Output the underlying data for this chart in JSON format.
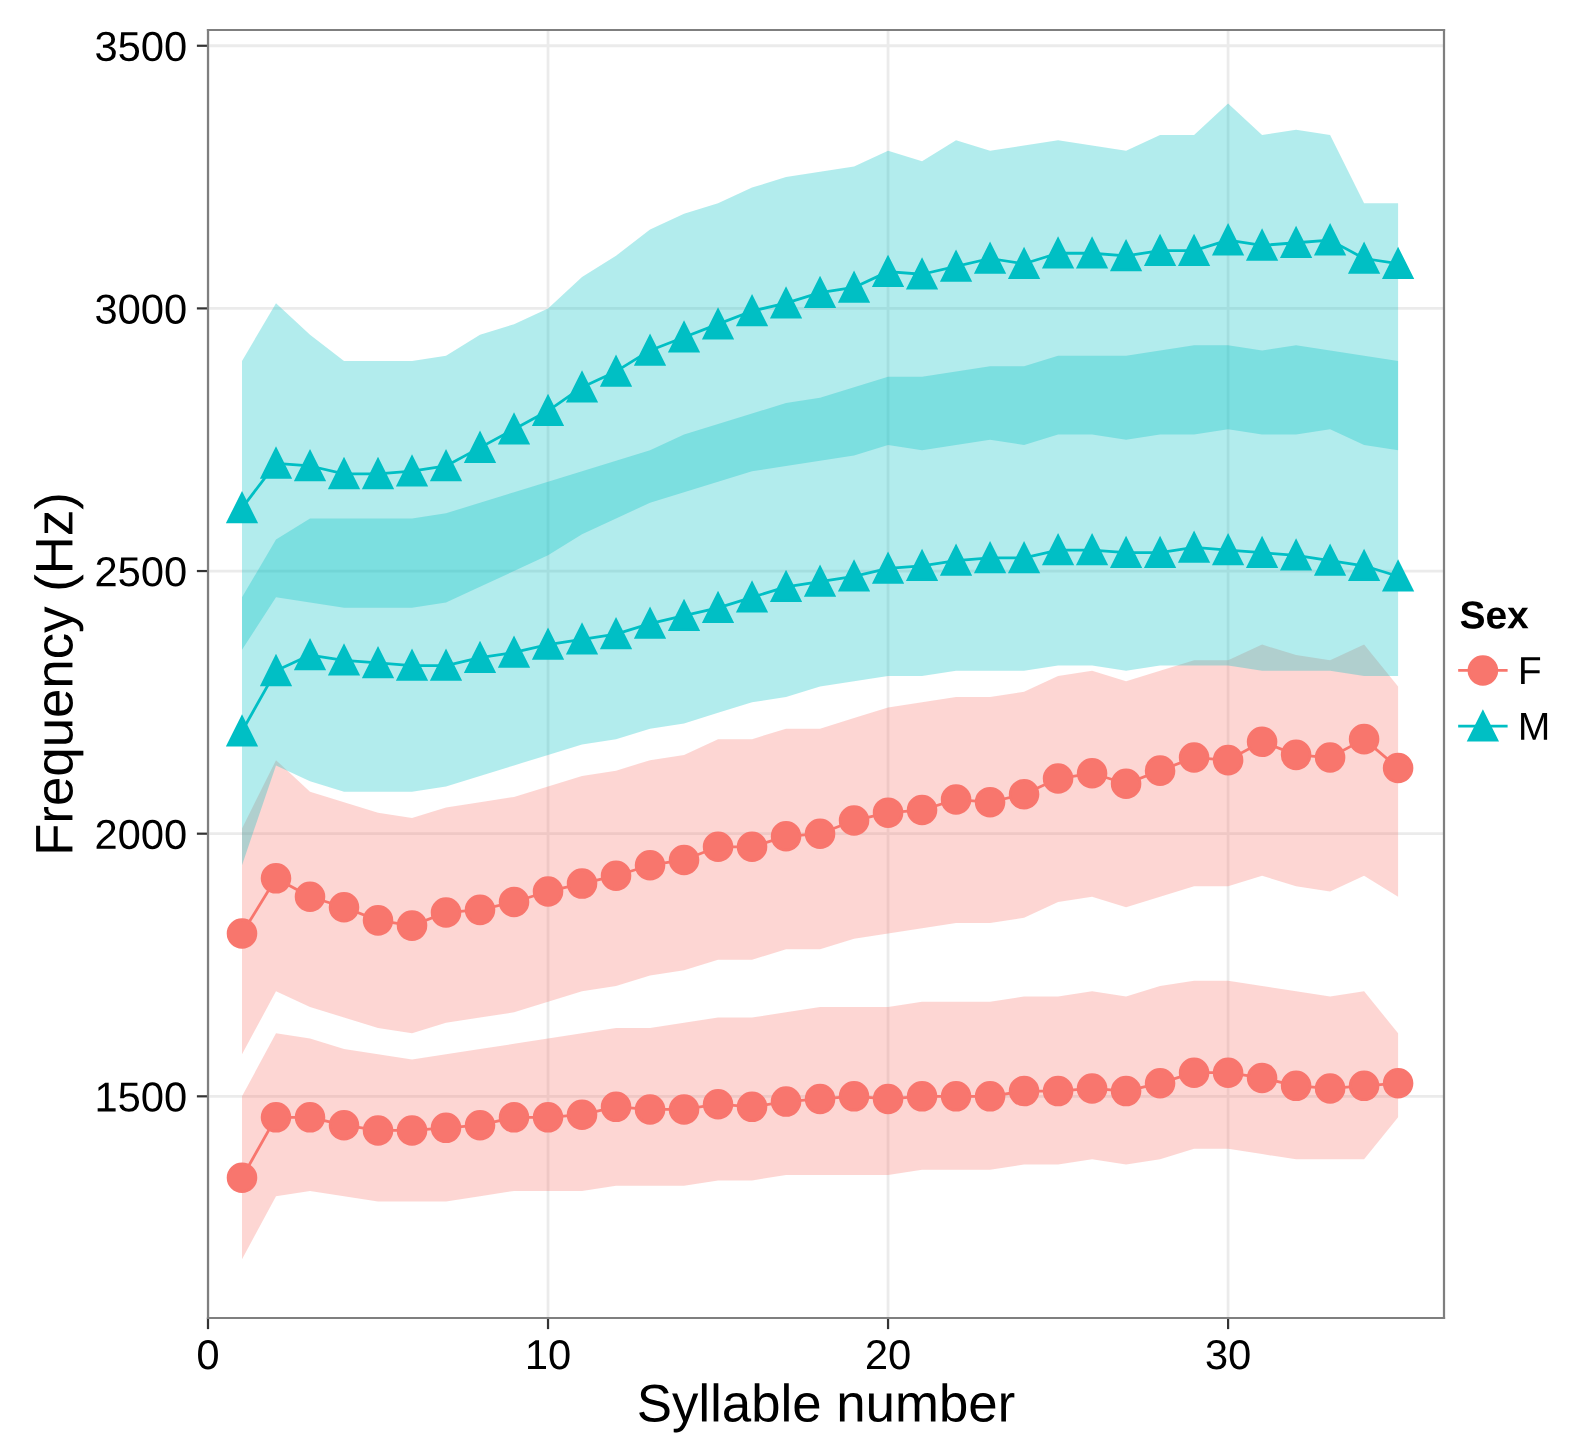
{
  "chart_data": {
    "type": "line",
    "xlabel": "Syllable number",
    "ylabel": "Frequency (Hz)",
    "legend_title": "Sex",
    "legend": "right",
    "grid": true,
    "xlim": [
      0,
      36.35
    ],
    "xticks": [
      0,
      10,
      20,
      30
    ],
    "ylim": [
      1078,
      3530
    ],
    "yticks": [
      1500,
      2000,
      2500,
      3000,
      3500
    ],
    "x": [
      1,
      2,
      3,
      4,
      5,
      6,
      7,
      8,
      9,
      10,
      11,
      12,
      13,
      14,
      15,
      16,
      17,
      18,
      19,
      20,
      21,
      22,
      23,
      24,
      25,
      26,
      27,
      28,
      29,
      30,
      31,
      32,
      33,
      34,
      35
    ],
    "series": [
      {
        "name": "F",
        "color": "#f8766d",
        "marker": "circle",
        "values": [
          1810,
          1915,
          1880,
          1860,
          1835,
          1825,
          1850,
          1855,
          1870,
          1890,
          1905,
          1920,
          1940,
          1950,
          1975,
          1975,
          1995,
          2000,
          2025,
          2040,
          2045,
          2065,
          2060,
          2075,
          2105,
          2115,
          2095,
          2120,
          2145,
          2140,
          2175,
          2150,
          2145,
          2180,
          2125
        ],
        "lower": [
          1580,
          1700,
          1670,
          1650,
          1630,
          1620,
          1640,
          1650,
          1660,
          1680,
          1700,
          1710,
          1730,
          1740,
          1760,
          1760,
          1780,
          1780,
          1800,
          1810,
          1820,
          1830,
          1830,
          1840,
          1870,
          1880,
          1860,
          1880,
          1900,
          1900,
          1920,
          1900,
          1890,
          1920,
          1880
        ],
        "upper": [
          2010,
          2140,
          2080,
          2060,
          2040,
          2030,
          2050,
          2060,
          2070,
          2090,
          2110,
          2120,
          2140,
          2150,
          2180,
          2180,
          2200,
          2200,
          2220,
          2240,
          2250,
          2260,
          2260,
          2270,
          2300,
          2310,
          2290,
          2310,
          2330,
          2330,
          2360,
          2340,
          2330,
          2360,
          2280
        ]
      },
      {
        "color": "#f8766e",
        "marker": "circle",
        "values": [
          1345,
          1460,
          1460,
          1445,
          1435,
          1435,
          1440,
          1445,
          1460,
          1460,
          1465,
          1480,
          1475,
          1475,
          1485,
          1480,
          1490,
          1495,
          1500,
          1495,
          1500,
          1500,
          1500,
          1510,
          1510,
          1515,
          1510,
          1525,
          1545,
          1545,
          1535,
          1520,
          1515,
          1520,
          1525
        ],
        "lower": [
          1190,
          1310,
          1320,
          1310,
          1300,
          1300,
          1300,
          1310,
          1320,
          1320,
          1320,
          1330,
          1330,
          1330,
          1340,
          1340,
          1350,
          1350,
          1350,
          1350,
          1360,
          1360,
          1360,
          1370,
          1370,
          1380,
          1370,
          1380,
          1400,
          1400,
          1390,
          1380,
          1380,
          1380,
          1460
        ],
        "upper": [
          1500,
          1620,
          1610,
          1590,
          1580,
          1570,
          1580,
          1590,
          1600,
          1610,
          1620,
          1630,
          1630,
          1640,
          1650,
          1650,
          1660,
          1670,
          1670,
          1670,
          1680,
          1680,
          1680,
          1690,
          1690,
          1700,
          1690,
          1710,
          1720,
          1720,
          1710,
          1700,
          1690,
          1700,
          1620
        ]
      },
      {
        "name": "M",
        "color": "#00bfc4",
        "marker": "triangle",
        "values": [
          2620,
          2705,
          2700,
          2685,
          2685,
          2690,
          2700,
          2735,
          2770,
          2805,
          2850,
          2880,
          2920,
          2945,
          2970,
          2995,
          3010,
          3030,
          3040,
          3070,
          3065,
          3080,
          3095,
          3085,
          3105,
          3105,
          3100,
          3110,
          3110,
          3130,
          3120,
          3125,
          3130,
          3095,
          3085
        ],
        "lower": [
          2350,
          2450,
          2440,
          2430,
          2430,
          2430,
          2440,
          2470,
          2500,
          2530,
          2570,
          2600,
          2630,
          2650,
          2670,
          2690,
          2700,
          2710,
          2720,
          2740,
          2730,
          2740,
          2750,
          2740,
          2760,
          2760,
          2750,
          2760,
          2760,
          2770,
          2760,
          2760,
          2770,
          2740,
          2730
        ],
        "upper": [
          2900,
          3010,
          2950,
          2900,
          2900,
          2900,
          2910,
          2950,
          2970,
          3000,
          3060,
          3100,
          3150,
          3180,
          3200,
          3230,
          3250,
          3260,
          3270,
          3300,
          3280,
          3320,
          3300,
          3310,
          3320,
          3310,
          3300,
          3330,
          3330,
          3390,
          3330,
          3340,
          3330,
          3200,
          3200
        ]
      },
      {
        "color": "#00bfc5",
        "marker": "triangle",
        "values": [
          2195,
          2310,
          2340,
          2330,
          2325,
          2320,
          2320,
          2335,
          2345,
          2360,
          2370,
          2380,
          2400,
          2415,
          2430,
          2450,
          2470,
          2480,
          2490,
          2505,
          2510,
          2520,
          2525,
          2525,
          2540,
          2540,
          2535,
          2535,
          2545,
          2540,
          2535,
          2530,
          2520,
          2510,
          2490
        ],
        "lower": [
          1940,
          2130,
          2100,
          2080,
          2080,
          2080,
          2090,
          2110,
          2130,
          2150,
          2170,
          2180,
          2200,
          2210,
          2230,
          2250,
          2260,
          2280,
          2290,
          2300,
          2300,
          2310,
          2310,
          2310,
          2320,
          2320,
          2310,
          2320,
          2320,
          2320,
          2310,
          2310,
          2310,
          2300,
          2300
        ],
        "upper": [
          2450,
          2560,
          2600,
          2600,
          2600,
          2600,
          2610,
          2630,
          2650,
          2670,
          2690,
          2710,
          2730,
          2760,
          2780,
          2800,
          2820,
          2830,
          2850,
          2870,
          2870,
          2880,
          2890,
          2890,
          2910,
          2910,
          2910,
          2920,
          2930,
          2930,
          2920,
          2930,
          2920,
          2910,
          2900
        ]
      }
    ]
  }
}
